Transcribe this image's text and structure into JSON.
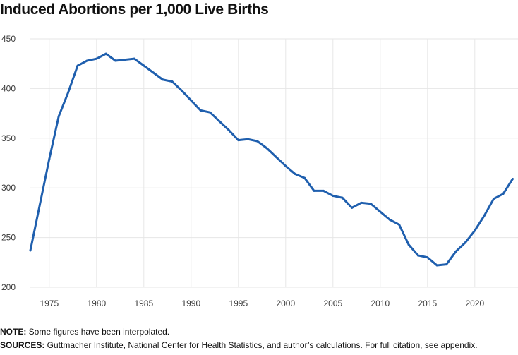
{
  "title": "Induced Abortions per 1,000 Live Births",
  "note_label": "NOTE:",
  "note_text": " Some figures have been interpolated.",
  "sources_label": "SOURCES:",
  "sources_text": " Guttmacher Institute, National Center for Health Statistics, and author’s calculations. For full citation, see appendix.",
  "colors": {
    "line": "#1f5fae",
    "grid": "#e6e6e6",
    "text": "#111111"
  },
  "chart_data": {
    "type": "line",
    "title": "Induced Abortions per 1,000 Live Births",
    "xlabel": "",
    "ylabel": "",
    "xlim": [
      1973,
      2024
    ],
    "ylim": [
      200,
      450
    ],
    "grid": true,
    "x_ticks": [
      1975,
      1980,
      1985,
      1990,
      1995,
      2000,
      2005,
      2010,
      2015,
      2020
    ],
    "y_ticks": [
      200,
      250,
      300,
      350,
      400,
      450
    ],
    "series": [
      {
        "x": [
          1973,
          1974,
          1975,
          1976,
          1977,
          1978,
          1979,
          1980,
          1981,
          1982,
          1983,
          1984,
          1985,
          1986,
          1987,
          1988,
          1989,
          1990,
          1991,
          1992,
          1993,
          1994,
          1995,
          1996,
          1997,
          1998,
          1999,
          2000,
          2001,
          2002,
          2003,
          2004,
          2005,
          2006,
          2007,
          2008,
          2009,
          2010,
          2011,
          2012,
          2013,
          2014,
          2015,
          2016,
          2017,
          2018,
          2019,
          2020,
          2021,
          2022,
          2023,
          2024
        ],
        "y": [
          237,
          283,
          329,
          372,
          396,
          423,
          428,
          430,
          435,
          428,
          429,
          430,
          423,
          416,
          409,
          407,
          398,
          388,
          378,
          376,
          367,
          358,
          348,
          349,
          347,
          340,
          331,
          322,
          314,
          310,
          297,
          297,
          292,
          290,
          280,
          285,
          284,
          276,
          268,
          263,
          243,
          232,
          230,
          222,
          223,
          236,
          245,
          257,
          272,
          289,
          294,
          309
        ]
      }
    ]
  }
}
